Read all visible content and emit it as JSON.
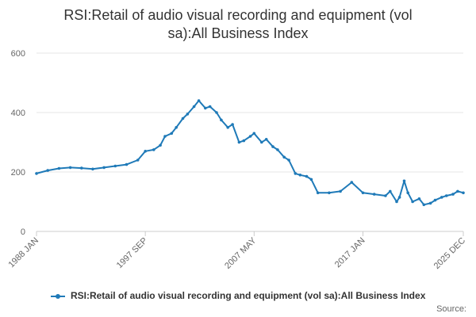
{
  "chart_data": {
    "type": "line",
    "title_lines": [
      "RSI:Retail of audio visual recording and equipment (vol",
      "sa):All Business Index"
    ],
    "xlabel": "",
    "ylabel": "",
    "x_tick_labels": [
      "1988 JAN",
      "1997 SEP",
      "2007 MAY",
      "2017 JAN",
      "2025 DEC"
    ],
    "y_tick_labels": [
      "0",
      "200",
      "400",
      "600"
    ],
    "ylim": [
      0,
      600
    ],
    "xlim": [
      "1988 JAN",
      "2025 DEC"
    ],
    "grid": true,
    "legend_position": "bottom",
    "series": [
      {
        "name": "RSI:Retail of audio visual recording and equipment (vol sa):All Business Index",
        "color": "#1f7ab8",
        "x": [
          "1988-01",
          "1989-01",
          "1990-01",
          "1991-01",
          "1992-01",
          "1993-01",
          "1994-01",
          "1995-01",
          "1996-01",
          "1997-01",
          "1997-09",
          "1998-06",
          "1999-01",
          "1999-06",
          "2000-01",
          "2000-06",
          "2001-01",
          "2001-06",
          "2002-01",
          "2002-06",
          "2003-01",
          "2003-06",
          "2004-01",
          "2004-06",
          "2005-01",
          "2005-06",
          "2006-01",
          "2006-06",
          "2007-01",
          "2007-05",
          "2008-01",
          "2008-06",
          "2009-01",
          "2009-06",
          "2010-01",
          "2010-06",
          "2011-01",
          "2011-06",
          "2012-01",
          "2012-06",
          "2013-01",
          "2014-01",
          "2015-01",
          "2016-01",
          "2017-01",
          "2018-01",
          "2019-01",
          "2019-06",
          "2020-01",
          "2020-04",
          "2020-09",
          "2021-01",
          "2021-06",
          "2022-01",
          "2022-06",
          "2023-01",
          "2023-06",
          "2024-01",
          "2024-06",
          "2025-01",
          "2025-06",
          "2025-12"
        ],
        "values": [
          195,
          205,
          212,
          215,
          213,
          210,
          215,
          220,
          225,
          240,
          270,
          275,
          290,
          320,
          330,
          350,
          380,
          395,
          420,
          440,
          415,
          420,
          400,
          375,
          350,
          360,
          300,
          305,
          320,
          330,
          300,
          310,
          285,
          275,
          250,
          240,
          195,
          190,
          185,
          175,
          130,
          130,
          135,
          165,
          130,
          125,
          120,
          135,
          100,
          115,
          170,
          130,
          100,
          110,
          90,
          95,
          105,
          115,
          120,
          125,
          135,
          130
        ]
      }
    ]
  },
  "source_label": "Source:"
}
